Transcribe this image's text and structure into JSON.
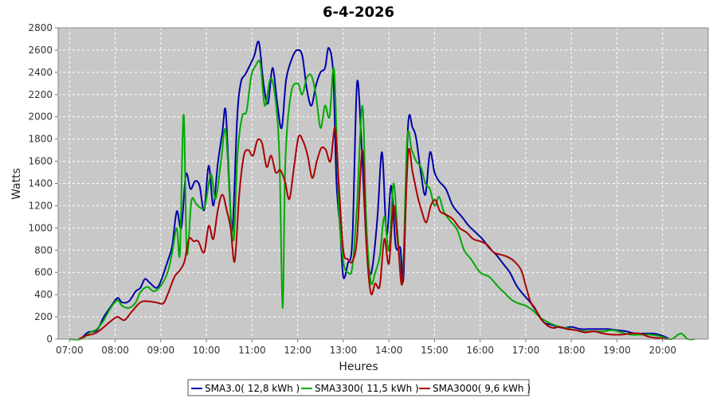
{
  "chart_data": {
    "type": "line",
    "title": "6-4-2026",
    "xlabel": "Heures",
    "ylabel": "Watts",
    "xlim": [
      6.75,
      21.0
    ],
    "ylim": [
      0,
      2800
    ],
    "x_ticks": [
      "07:00",
      "08:00",
      "09:00",
      "10:00",
      "11:00",
      "12:00",
      "13:00",
      "14:00",
      "15:00",
      "16:00",
      "17:00",
      "18:00",
      "19:00",
      "20:00"
    ],
    "y_ticks": [
      0,
      200,
      400,
      600,
      800,
      1000,
      1200,
      1400,
      1600,
      1800,
      2000,
      2200,
      2400,
      2600,
      2800
    ],
    "grid": true,
    "legend": "bottom",
    "background": "#c8c8c8",
    "series": [
      {
        "name": "SMA3.0( 12,8 kWh )",
        "color": "#0000aa",
        "points": [
          [
            7.25,
            0
          ],
          [
            7.4,
            60
          ],
          [
            7.6,
            80
          ],
          [
            7.75,
            200
          ],
          [
            7.9,
            290
          ],
          [
            8.05,
            370
          ],
          [
            8.15,
            330
          ],
          [
            8.3,
            340
          ],
          [
            8.45,
            430
          ],
          [
            8.55,
            460
          ],
          [
            8.65,
            540
          ],
          [
            8.75,
            510
          ],
          [
            8.9,
            460
          ],
          [
            9.0,
            520
          ],
          [
            9.15,
            700
          ],
          [
            9.25,
            840
          ],
          [
            9.35,
            1150
          ],
          [
            9.45,
            1000
          ],
          [
            9.55,
            1480
          ],
          [
            9.65,
            1350
          ],
          [
            9.75,
            1420
          ],
          [
            9.85,
            1380
          ],
          [
            9.95,
            1160
          ],
          [
            10.05,
            1560
          ],
          [
            10.15,
            1200
          ],
          [
            10.25,
            1580
          ],
          [
            10.35,
            1860
          ],
          [
            10.42,
            2060
          ],
          [
            10.5,
            1400
          ],
          [
            10.57,
            970
          ],
          [
            10.67,
            1960
          ],
          [
            10.75,
            2300
          ],
          [
            10.85,
            2380
          ],
          [
            10.95,
            2460
          ],
          [
            11.05,
            2550
          ],
          [
            11.15,
            2670
          ],
          [
            11.25,
            2300
          ],
          [
            11.35,
            2120
          ],
          [
            11.45,
            2440
          ],
          [
            11.55,
            2130
          ],
          [
            11.65,
            1900
          ],
          [
            11.75,
            2340
          ],
          [
            11.9,
            2550
          ],
          [
            12.0,
            2600
          ],
          [
            12.1,
            2550
          ],
          [
            12.2,
            2250
          ],
          [
            12.3,
            2100
          ],
          [
            12.4,
            2280
          ],
          [
            12.5,
            2400
          ],
          [
            12.6,
            2440
          ],
          [
            12.68,
            2620
          ],
          [
            12.78,
            2380
          ],
          [
            12.85,
            1420
          ],
          [
            12.93,
            1000
          ],
          [
            13.0,
            560
          ],
          [
            13.1,
            680
          ],
          [
            13.2,
            900
          ],
          [
            13.3,
            2300
          ],
          [
            13.4,
            1750
          ],
          [
            13.5,
            920
          ],
          [
            13.58,
            600
          ],
          [
            13.65,
            680
          ],
          [
            13.75,
            1100
          ],
          [
            13.85,
            1680
          ],
          [
            13.95,
            940
          ],
          [
            14.05,
            1380
          ],
          [
            14.15,
            840
          ],
          [
            14.25,
            820
          ],
          [
            14.32,
            560
          ],
          [
            14.42,
            1920
          ],
          [
            14.52,
            1900
          ],
          [
            14.6,
            1800
          ],
          [
            14.7,
            1500
          ],
          [
            14.8,
            1300
          ],
          [
            14.9,
            1680
          ],
          [
            15.0,
            1500
          ],
          [
            15.1,
            1420
          ],
          [
            15.25,
            1350
          ],
          [
            15.4,
            1200
          ],
          [
            15.6,
            1100
          ],
          [
            15.75,
            1020
          ],
          [
            15.9,
            960
          ],
          [
            16.05,
            900
          ],
          [
            16.2,
            820
          ],
          [
            16.35,
            760
          ],
          [
            16.5,
            680
          ],
          [
            16.65,
            600
          ],
          [
            16.8,
            480
          ],
          [
            16.95,
            400
          ],
          [
            17.1,
            330
          ],
          [
            17.25,
            240
          ],
          [
            17.4,
            150
          ],
          [
            17.55,
            130
          ],
          [
            17.7,
            110
          ],
          [
            17.85,
            100
          ],
          [
            18.0,
            110
          ],
          [
            18.2,
            90
          ],
          [
            18.4,
            90
          ],
          [
            18.6,
            90
          ],
          [
            18.8,
            90
          ],
          [
            19.0,
            80
          ],
          [
            19.2,
            70
          ],
          [
            19.4,
            50
          ],
          [
            19.6,
            50
          ],
          [
            19.8,
            50
          ],
          [
            20.0,
            30
          ],
          [
            20.15,
            0
          ]
        ]
      },
      {
        "name": "SMA3300( 11,5 kWh )",
        "color": "#00aa00",
        "points": [
          [
            7.0,
            0
          ],
          [
            7.25,
            0
          ],
          [
            7.45,
            60
          ],
          [
            7.6,
            90
          ],
          [
            7.75,
            170
          ],
          [
            7.9,
            280
          ],
          [
            8.05,
            350
          ],
          [
            8.15,
            300
          ],
          [
            8.3,
            280
          ],
          [
            8.45,
            330
          ],
          [
            8.55,
            420
          ],
          [
            8.7,
            470
          ],
          [
            8.85,
            430
          ],
          [
            9.0,
            480
          ],
          [
            9.15,
            600
          ],
          [
            9.25,
            780
          ],
          [
            9.35,
            1000
          ],
          [
            9.42,
            780
          ],
          [
            9.5,
            2020
          ],
          [
            9.57,
            780
          ],
          [
            9.67,
            1240
          ],
          [
            9.77,
            1220
          ],
          [
            9.87,
            1180
          ],
          [
            9.97,
            1200
          ],
          [
            10.1,
            1480
          ],
          [
            10.2,
            1260
          ],
          [
            10.32,
            1600
          ],
          [
            10.42,
            1880
          ],
          [
            10.52,
            1200
          ],
          [
            10.6,
            900
          ],
          [
            10.68,
            1650
          ],
          [
            10.78,
            2000
          ],
          [
            10.88,
            2050
          ],
          [
            10.98,
            2360
          ],
          [
            11.08,
            2460
          ],
          [
            11.18,
            2480
          ],
          [
            11.28,
            2100
          ],
          [
            11.4,
            2340
          ],
          [
            11.5,
            2200
          ],
          [
            11.6,
            1650
          ],
          [
            11.67,
            280
          ],
          [
            11.73,
            1600
          ],
          [
            11.85,
            2200
          ],
          [
            12.0,
            2300
          ],
          [
            12.1,
            2200
          ],
          [
            12.2,
            2350
          ],
          [
            12.3,
            2370
          ],
          [
            12.4,
            2200
          ],
          [
            12.5,
            1900
          ],
          [
            12.6,
            2100
          ],
          [
            12.7,
            2000
          ],
          [
            12.8,
            2420
          ],
          [
            12.9,
            1200
          ],
          [
            13.0,
            700
          ],
          [
            13.1,
            600
          ],
          [
            13.2,
            650
          ],
          [
            13.3,
            1200
          ],
          [
            13.42,
            2100
          ],
          [
            13.5,
            1100
          ],
          [
            13.6,
            520
          ],
          [
            13.7,
            600
          ],
          [
            13.8,
            750
          ],
          [
            13.9,
            1100
          ],
          [
            14.0,
            800
          ],
          [
            14.1,
            1400
          ],
          [
            14.2,
            900
          ],
          [
            14.3,
            520
          ],
          [
            14.4,
            1800
          ],
          [
            14.5,
            1700
          ],
          [
            14.6,
            1600
          ],
          [
            14.7,
            1550
          ],
          [
            14.8,
            1400
          ],
          [
            14.9,
            1350
          ],
          [
            15.0,
            1200
          ],
          [
            15.1,
            1280
          ],
          [
            15.2,
            1150
          ],
          [
            15.35,
            1060
          ],
          [
            15.5,
            980
          ],
          [
            15.65,
            800
          ],
          [
            15.8,
            720
          ],
          [
            16.0,
            600
          ],
          [
            16.2,
            560
          ],
          [
            16.4,
            470
          ],
          [
            16.55,
            410
          ],
          [
            16.7,
            350
          ],
          [
            16.85,
            320
          ],
          [
            17.0,
            300
          ],
          [
            17.15,
            260
          ],
          [
            17.3,
            200
          ],
          [
            17.45,
            160
          ],
          [
            17.6,
            130
          ],
          [
            17.75,
            110
          ],
          [
            17.9,
            100
          ],
          [
            18.1,
            80
          ],
          [
            18.3,
            70
          ],
          [
            18.5,
            70
          ],
          [
            18.7,
            70
          ],
          [
            18.9,
            80
          ],
          [
            19.1,
            60
          ],
          [
            19.3,
            40
          ],
          [
            19.5,
            40
          ],
          [
            19.7,
            40
          ],
          [
            19.9,
            30
          ],
          [
            20.05,
            10
          ],
          [
            20.2,
            0
          ],
          [
            20.4,
            50
          ],
          [
            20.55,
            0
          ],
          [
            20.7,
            0
          ]
        ]
      },
      {
        "name": "SMA3000( 9,6 kWh )",
        "color": "#aa0000",
        "points": [
          [
            7.2,
            0
          ],
          [
            7.35,
            30
          ],
          [
            7.55,
            50
          ],
          [
            7.7,
            90
          ],
          [
            7.9,
            160
          ],
          [
            8.05,
            200
          ],
          [
            8.2,
            170
          ],
          [
            8.35,
            240
          ],
          [
            8.55,
            330
          ],
          [
            8.7,
            340
          ],
          [
            8.9,
            330
          ],
          [
            9.05,
            320
          ],
          [
            9.15,
            400
          ],
          [
            9.3,
            560
          ],
          [
            9.42,
            620
          ],
          [
            9.52,
            700
          ],
          [
            9.62,
            900
          ],
          [
            9.72,
            880
          ],
          [
            9.82,
            880
          ],
          [
            9.95,
            780
          ],
          [
            10.05,
            1020
          ],
          [
            10.15,
            900
          ],
          [
            10.25,
            1160
          ],
          [
            10.35,
            1300
          ],
          [
            10.45,
            1150
          ],
          [
            10.53,
            1000
          ],
          [
            10.62,
            700
          ],
          [
            10.72,
            1300
          ],
          [
            10.82,
            1650
          ],
          [
            10.92,
            1700
          ],
          [
            11.02,
            1650
          ],
          [
            11.12,
            1790
          ],
          [
            11.22,
            1760
          ],
          [
            11.32,
            1550
          ],
          [
            11.42,
            1650
          ],
          [
            11.52,
            1500
          ],
          [
            11.62,
            1520
          ],
          [
            11.72,
            1420
          ],
          [
            11.82,
            1260
          ],
          [
            11.92,
            1550
          ],
          [
            12.02,
            1820
          ],
          [
            12.12,
            1780
          ],
          [
            12.22,
            1650
          ],
          [
            12.32,
            1450
          ],
          [
            12.42,
            1600
          ],
          [
            12.52,
            1720
          ],
          [
            12.62,
            1700
          ],
          [
            12.72,
            1600
          ],
          [
            12.82,
            1900
          ],
          [
            12.9,
            1400
          ],
          [
            13.0,
            800
          ],
          [
            13.1,
            720
          ],
          [
            13.2,
            700
          ],
          [
            13.3,
            900
          ],
          [
            13.42,
            1700
          ],
          [
            13.5,
            900
          ],
          [
            13.6,
            420
          ],
          [
            13.7,
            500
          ],
          [
            13.8,
            480
          ],
          [
            13.9,
            900
          ],
          [
            14.0,
            680
          ],
          [
            14.1,
            1200
          ],
          [
            14.2,
            850
          ],
          [
            14.3,
            520
          ],
          [
            14.42,
            1660
          ],
          [
            14.52,
            1500
          ],
          [
            14.62,
            1300
          ],
          [
            14.72,
            1150
          ],
          [
            14.82,
            1050
          ],
          [
            14.92,
            1200
          ],
          [
            15.02,
            1250
          ],
          [
            15.12,
            1150
          ],
          [
            15.25,
            1120
          ],
          [
            15.4,
            1080
          ],
          [
            15.55,
            1000
          ],
          [
            15.7,
            960
          ],
          [
            15.85,
            900
          ],
          [
            16.0,
            880
          ],
          [
            16.15,
            850
          ],
          [
            16.3,
            780
          ],
          [
            16.45,
            760
          ],
          [
            16.6,
            740
          ],
          [
            16.75,
            700
          ],
          [
            16.9,
            620
          ],
          [
            17.0,
            480
          ],
          [
            17.1,
            340
          ],
          [
            17.2,
            280
          ],
          [
            17.3,
            200
          ],
          [
            17.45,
            130
          ],
          [
            17.6,
            100
          ],
          [
            17.75,
            110
          ],
          [
            17.9,
            90
          ],
          [
            18.1,
            80
          ],
          [
            18.3,
            60
          ],
          [
            18.5,
            70
          ],
          [
            18.7,
            50
          ],
          [
            18.9,
            40
          ],
          [
            19.1,
            40
          ],
          [
            19.3,
            50
          ],
          [
            19.5,
            50
          ],
          [
            19.7,
            20
          ],
          [
            19.9,
            10
          ],
          [
            20.1,
            0
          ]
        ]
      }
    ]
  }
}
